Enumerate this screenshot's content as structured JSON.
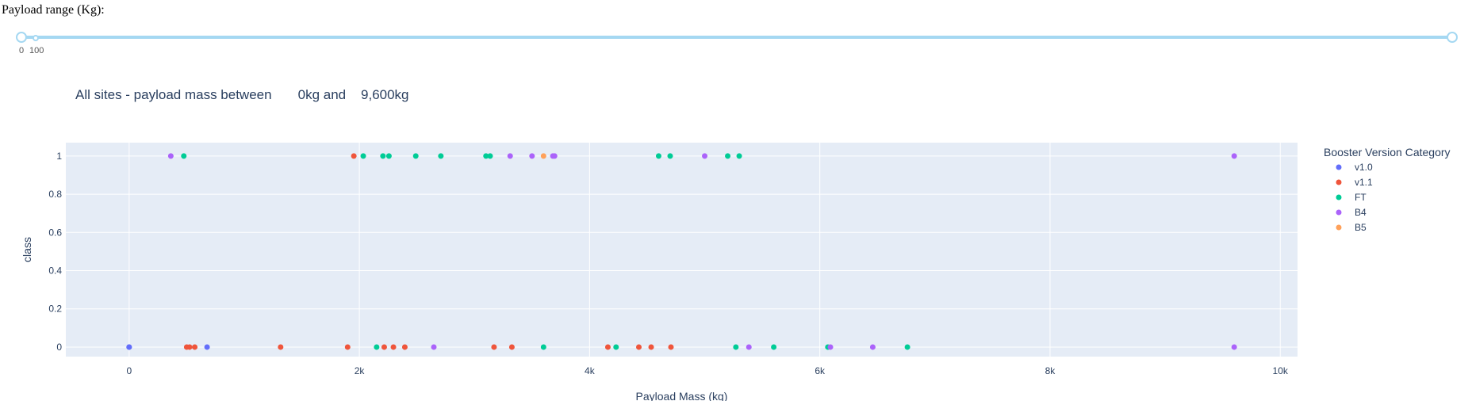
{
  "slider": {
    "label": "Payload range (Kg):",
    "min_label": "0",
    "step_label": "100",
    "range_low": 0,
    "range_high": 9600,
    "slider_max": 10000,
    "track_color": "#a5d8f2"
  },
  "chart_data": {
    "type": "scatter",
    "title": "All sites - payload mass between       0kg and    9,600kg",
    "xlabel": "Payload Mass (kg)",
    "ylabel": "class",
    "xlim": [
      -550,
      10150
    ],
    "ylim": [
      -0.05,
      1.07
    ],
    "xticks": [
      0,
      2000,
      4000,
      6000,
      8000,
      10000
    ],
    "xtick_labels": [
      "0",
      "2k",
      "4k",
      "6k",
      "8k",
      "10k"
    ],
    "yticks": [
      0,
      0.2,
      0.4,
      0.6,
      0.8,
      1
    ],
    "ytick_labels": [
      "0",
      "0.2",
      "0.4",
      "0.6",
      "0.8",
      "1"
    ],
    "grid": true,
    "plot_bgcolor": "#e5ecf6",
    "legend_title": "Booster Version Category",
    "legend_position": "right",
    "series": [
      {
        "name": "v1.0",
        "color": "#636efa",
        "x": [
          0,
          0,
          677
        ],
        "y": [
          0,
          0,
          0
        ]
      },
      {
        "name": "v1.1",
        "color": "#ef553b",
        "x": [
          500,
          525,
          570,
          1316,
          1898,
          1952,
          2216,
          2296,
          2395,
          3170,
          3325,
          4159,
          4428,
          4535,
          4707
        ],
        "y": [
          0,
          0,
          0,
          0,
          0,
          1,
          0,
          0,
          0,
          0,
          0,
          0,
          0,
          0,
          0
        ]
      },
      {
        "name": "FT",
        "color": "#00cc96",
        "x": [
          475,
          2034,
          2150,
          2205,
          2257,
          2490,
          2708,
          3100,
          3136,
          3600,
          4230,
          4600,
          4700,
          5200,
          5271,
          5300,
          5600,
          6070,
          6761
        ],
        "y": [
          1,
          1,
          0,
          1,
          1,
          1,
          1,
          1,
          1,
          0,
          0,
          1,
          1,
          1,
          0,
          1,
          0,
          0,
          0
        ]
      },
      {
        "name": "B4",
        "color": "#ab63fa",
        "x": [
          362,
          2647,
          3310,
          3500,
          3681,
          3696,
          5000,
          5384,
          6092,
          6460,
          9600,
          9600
        ],
        "y": [
          1,
          0,
          1,
          1,
          1,
          1,
          1,
          0,
          0,
          0,
          1,
          0
        ]
      },
      {
        "name": "B5",
        "color": "#ffa15a",
        "x": [
          3600
        ],
        "y": [
          1
        ]
      }
    ]
  }
}
